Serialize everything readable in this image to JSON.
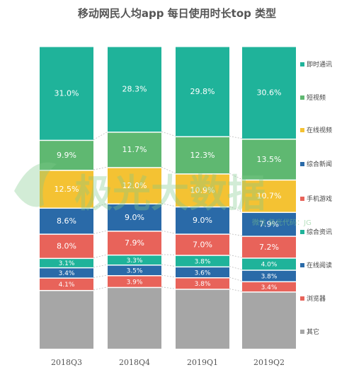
{
  "chart_data": {
    "type": "bar",
    "stacked": true,
    "title": "移动网民人均app 每日使用时长top 类型",
    "categories": [
      "2018Q3",
      "2018Q4",
      "2019Q1",
      "2019Q2"
    ],
    "series": [
      {
        "name": "其它",
        "color": "#a6a6a6",
        "values": [
          null,
          null,
          null,
          null
        ]
      },
      {
        "name": "浏览器",
        "color": "#e8635a",
        "values": [
          4.1,
          3.9,
          3.8,
          3.4
        ]
      },
      {
        "name": "在线阅读",
        "color": "#2a6aa8",
        "values": [
          3.4,
          3.5,
          3.6,
          3.8
        ]
      },
      {
        "name": "综合资讯",
        "color": "#1fb39a",
        "values": [
          3.1,
          3.3,
          3.8,
          4.0
        ]
      },
      {
        "name": "手机游戏",
        "color": "#e8635a",
        "values": [
          8.0,
          7.9,
          7.0,
          7.2
        ]
      },
      {
        "name": "综合新闻",
        "color": "#2a6aa8",
        "values": [
          8.6,
          9.0,
          9.0,
          7.9
        ]
      },
      {
        "name": "在线视频",
        "color": "#f4c233",
        "values": [
          12.5,
          12.0,
          10.9,
          10.7
        ]
      },
      {
        "name": "短视频",
        "color": "#5fb871",
        "values": [
          9.9,
          11.7,
          12.3,
          13.5
        ]
      },
      {
        "name": "即时通讯",
        "color": "#1fb39a",
        "values": [
          31.0,
          28.3,
          29.8,
          30.6
        ]
      }
    ],
    "legend_order": [
      "即时通讯",
      "短视频",
      "在线视频",
      "综合新闻",
      "手机游戏",
      "综合资讯",
      "在线阅读",
      "浏览器",
      "其它"
    ],
    "value_suffix": "%",
    "legend_position": "right"
  },
  "watermark": {
    "text": "极光大数据",
    "subtext": "微信 极光代码：JG"
  }
}
